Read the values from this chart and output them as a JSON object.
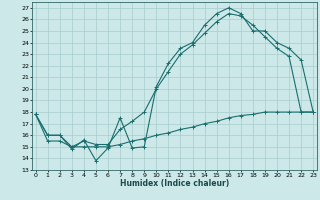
{
  "xlabel": "Humidex (Indice chaleur)",
  "bg_color": "#cde8e8",
  "line_color": "#1a6e6e",
  "grid_color": "#b8d8d8",
  "x_ticks": [
    0,
    1,
    2,
    3,
    4,
    5,
    6,
    7,
    8,
    9,
    10,
    11,
    12,
    13,
    14,
    15,
    16,
    17,
    18,
    19,
    20,
    21,
    22,
    23
  ],
  "ylim": [
    13,
    27.5
  ],
  "xlim": [
    -0.3,
    23.3
  ],
  "yticks": [
    13,
    14,
    15,
    16,
    17,
    18,
    19,
    20,
    21,
    22,
    23,
    24,
    25,
    26,
    27
  ],
  "line1_x": [
    0,
    1,
    2,
    3,
    4,
    5,
    6,
    7,
    8,
    9,
    10,
    11,
    12,
    13,
    14,
    15,
    16,
    17,
    18,
    19,
    20,
    21,
    22,
    23
  ],
  "line1_y": [
    17.8,
    16.0,
    16.0,
    14.8,
    15.6,
    13.8,
    14.9,
    17.5,
    14.9,
    15.0,
    20.2,
    22.2,
    23.5,
    24.0,
    25.5,
    26.5,
    27.0,
    26.5,
    25.0,
    25.0,
    24.0,
    23.5,
    22.5,
    18.0
  ],
  "line2_x": [
    0,
    1,
    2,
    3,
    4,
    5,
    6,
    7,
    8,
    9,
    10,
    11,
    12,
    13,
    14,
    15,
    16,
    17,
    18,
    19,
    20,
    21,
    22,
    23
  ],
  "line2_y": [
    17.8,
    16.0,
    16.0,
    15.0,
    15.5,
    15.2,
    15.2,
    16.5,
    17.2,
    18.0,
    20.0,
    21.5,
    23.0,
    23.8,
    24.8,
    25.8,
    26.5,
    26.3,
    25.5,
    24.5,
    23.5,
    22.8,
    18.0,
    18.0
  ],
  "line3_x": [
    0,
    1,
    2,
    3,
    4,
    5,
    6,
    7,
    8,
    9,
    10,
    11,
    12,
    13,
    14,
    15,
    16,
    17,
    18,
    19,
    20,
    21,
    22,
    23
  ],
  "line3_y": [
    17.8,
    15.5,
    15.5,
    15.0,
    15.0,
    15.0,
    15.0,
    15.2,
    15.5,
    15.7,
    16.0,
    16.2,
    16.5,
    16.7,
    17.0,
    17.2,
    17.5,
    17.7,
    17.8,
    18.0,
    18.0,
    18.0,
    18.0,
    18.0
  ]
}
